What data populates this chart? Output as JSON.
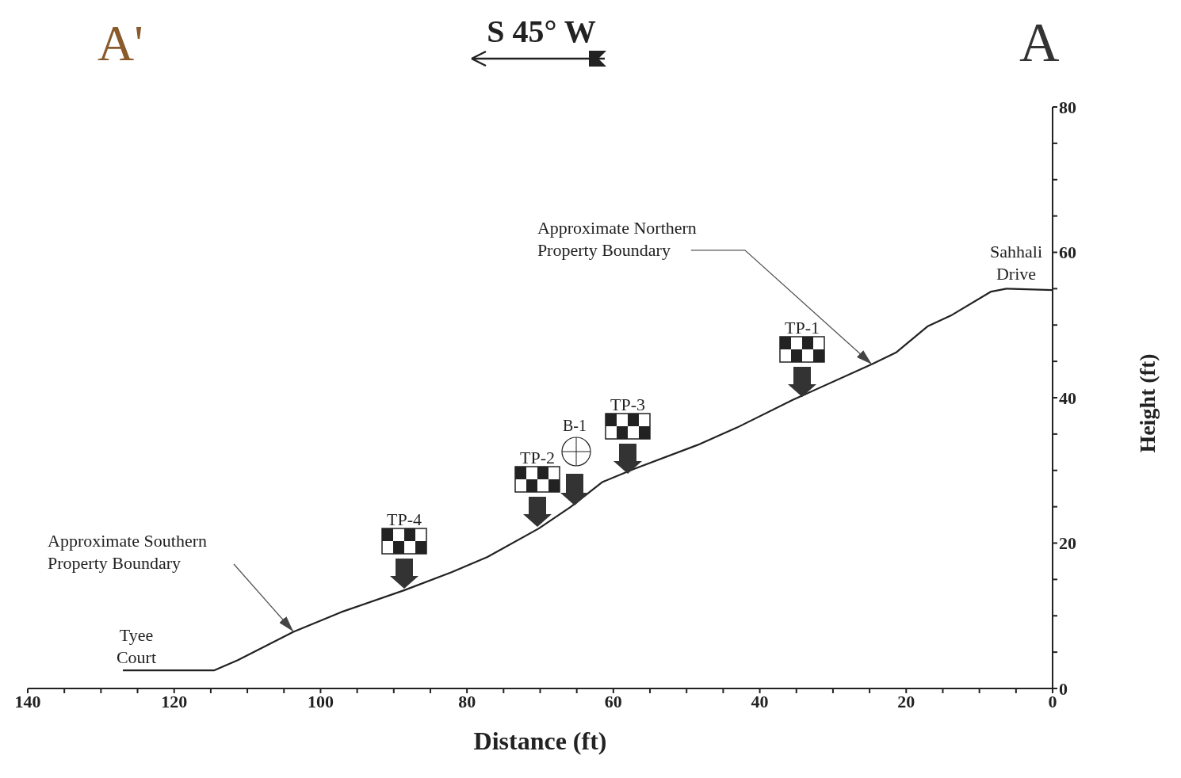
{
  "chart_data": {
    "type": "line",
    "xlabel": "Distance (ft)",
    "ylabel": "Height (ft)",
    "x": [
      127,
      114.5,
      111.3,
      103.7,
      97.2,
      88.6,
      82.1,
      77.2,
      70.2,
      65.8,
      61.5,
      57.2,
      48.5,
      43.1,
      35.5,
      24.7,
      21.4,
      17.1,
      13.9,
      8.4,
      6.3,
      0
    ],
    "values": [
      2.5,
      2.5,
      3.9,
      7.8,
      10.5,
      13.5,
      16,
      18.1,
      22,
      25,
      28.4,
      30.2,
      33.5,
      35.9,
      39.7,
      44.6,
      46.2,
      49.8,
      51.3,
      54.6,
      55,
      54.8
    ],
    "color": "#222222",
    "marker": "none",
    "xlim": [
      140,
      0
    ],
    "xticks": [
      0,
      {
        "value": 5,
        "label": null
      },
      {
        "value": 10,
        "label": null
      },
      {
        "value": 15,
        "label": null
      },
      20,
      {
        "value": 25,
        "label": null
      },
      {
        "value": 30,
        "label": null
      },
      {
        "value": 35,
        "label": null
      },
      40,
      {
        "value": 45,
        "label": null
      },
      {
        "value": 50,
        "label": null
      },
      {
        "value": 55,
        "label": null
      },
      60,
      {
        "value": 65,
        "label": null
      },
      {
        "value": 70,
        "label": null
      },
      {
        "value": 75,
        "label": null
      },
      80,
      {
        "value": 85,
        "label": null
      },
      {
        "value": 90,
        "label": null
      },
      {
        "value": 95,
        "label": null
      },
      100,
      {
        "value": 105,
        "label": null
      },
      {
        "value": 110,
        "label": null
      },
      {
        "value": 115,
        "label": null
      },
      120,
      {
        "value": 125,
        "label": null
      },
      {
        "value": 130,
        "label": null
      },
      {
        "value": 135,
        "label": null
      },
      140
    ],
    "ylim": [
      0,
      80
    ],
    "yticks": [
      0,
      {
        "value": 5,
        "label": null
      },
      {
        "value": 10,
        "label": null
      },
      {
        "value": 15,
        "label": null
      },
      20,
      {
        "value": 25,
        "label": null
      },
      {
        "value": 30,
        "label": null
      },
      {
        "value": 35,
        "label": null
      },
      40,
      {
        "value": 45,
        "label": null
      },
      {
        "value": 50,
        "label": null
      },
      {
        "value": 55,
        "label": null
      },
      60,
      {
        "value": 65,
        "label": null
      },
      {
        "value": 70,
        "label": null
      },
      {
        "value": 75,
        "label": null
      },
      80
    ],
    "annotations": [
      "A'",
      "S 45° W",
      "A",
      "Approximate Southern\nProperty Boundary",
      {
        "text": "Approximate Northern\nProperty Boundary",
        "x": 24.7,
        "y": 44.6
      },
      "Sahhali\nDrive",
      "Tyee\nCourt",
      "TP-4",
      "TP-2",
      "B-1",
      "TP-3",
      "TP-1"
    ]
  }
}
